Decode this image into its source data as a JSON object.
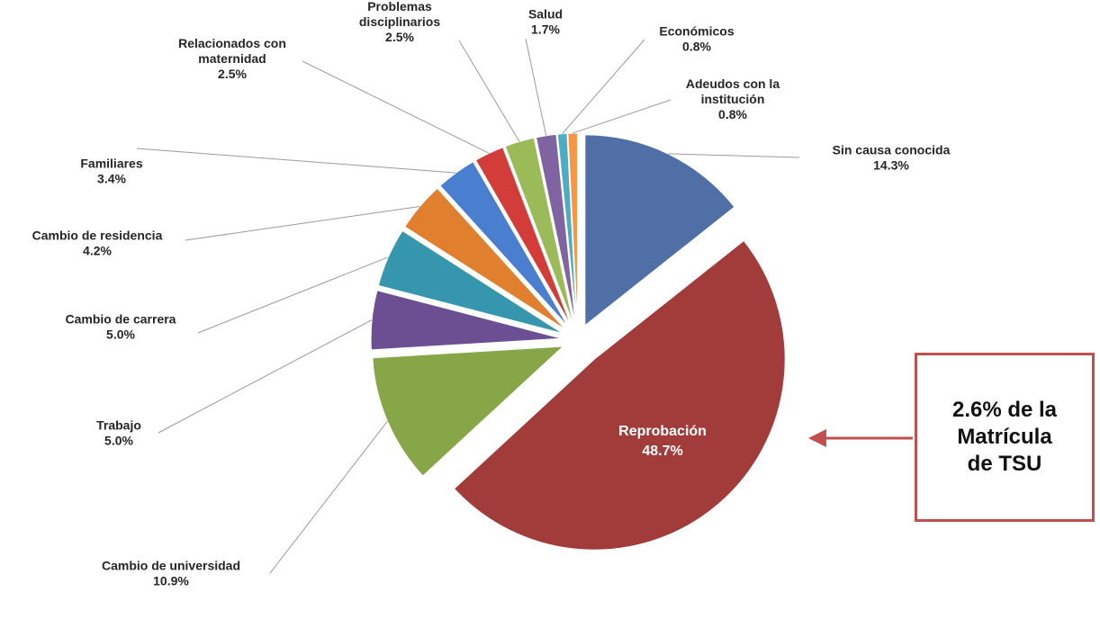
{
  "chart_data": {
    "type": "pie",
    "slices": [
      {
        "label": "Sin causa conocida",
        "label_lines": [
          "Sin causa conocida"
        ],
        "pct_text": "14.3%",
        "value": 14.3,
        "color": "#4f6fa6"
      },
      {
        "label": "Reprobación",
        "label_lines": [
          "Reprobación"
        ],
        "pct_text": "48.7%",
        "value": 48.7,
        "color": "#a23c3a"
      },
      {
        "label": "Cambio de universidad",
        "label_lines": [
          "Cambio de universidad"
        ],
        "pct_text": "10.9%",
        "value": 10.9,
        "color": "#86a648"
      },
      {
        "label": "Trabajo",
        "label_lines": [
          "Trabajo"
        ],
        "pct_text": "5.0%",
        "value": 5.0,
        "color": "#6c4f93"
      },
      {
        "label": "Cambio de carrera",
        "label_lines": [
          "Cambio de carrera"
        ],
        "pct_text": "5.0%",
        "value": 5.0,
        "color": "#3596ad"
      },
      {
        "label": "Cambio de residencia",
        "label_lines": [
          "Cambio de residencia"
        ],
        "pct_text": "4.2%",
        "value": 4.2,
        "color": "#e07f2d"
      },
      {
        "label": "Familiares",
        "label_lines": [
          "Familiares"
        ],
        "pct_text": "3.4%",
        "value": 3.4,
        "color": "#4a7fcf"
      },
      {
        "label": "Relacionados con maternidad",
        "label_lines": [
          "Relacionados con",
          "maternidad"
        ],
        "pct_text": "2.5%",
        "value": 2.5,
        "color": "#d23d3a"
      },
      {
        "label": "Problemas disciplinarios",
        "label_lines": [
          "Problemas",
          "disciplinarios"
        ],
        "pct_text": "2.5%",
        "value": 2.5,
        "color": "#9bbb59"
      },
      {
        "label": "Salud",
        "label_lines": [
          "Salud"
        ],
        "pct_text": "1.7%",
        "value": 1.7,
        "color": "#8064a2"
      },
      {
        "label": "Económicos",
        "label_lines": [
          "Económicos"
        ],
        "pct_text": "0.8%",
        "value": 0.8,
        "color": "#4bacc6"
      },
      {
        "label": "Adeudos con la institución",
        "label_lines": [
          "Adeudos con la",
          "institución"
        ],
        "pct_text": "0.8%",
        "value": 0.8,
        "color": "#f79646"
      }
    ]
  },
  "callout": {
    "text": "2.6% de la\nMatrícula\nde TSU",
    "border_color": "#c0504d",
    "arrow_color": "#c0504d"
  }
}
